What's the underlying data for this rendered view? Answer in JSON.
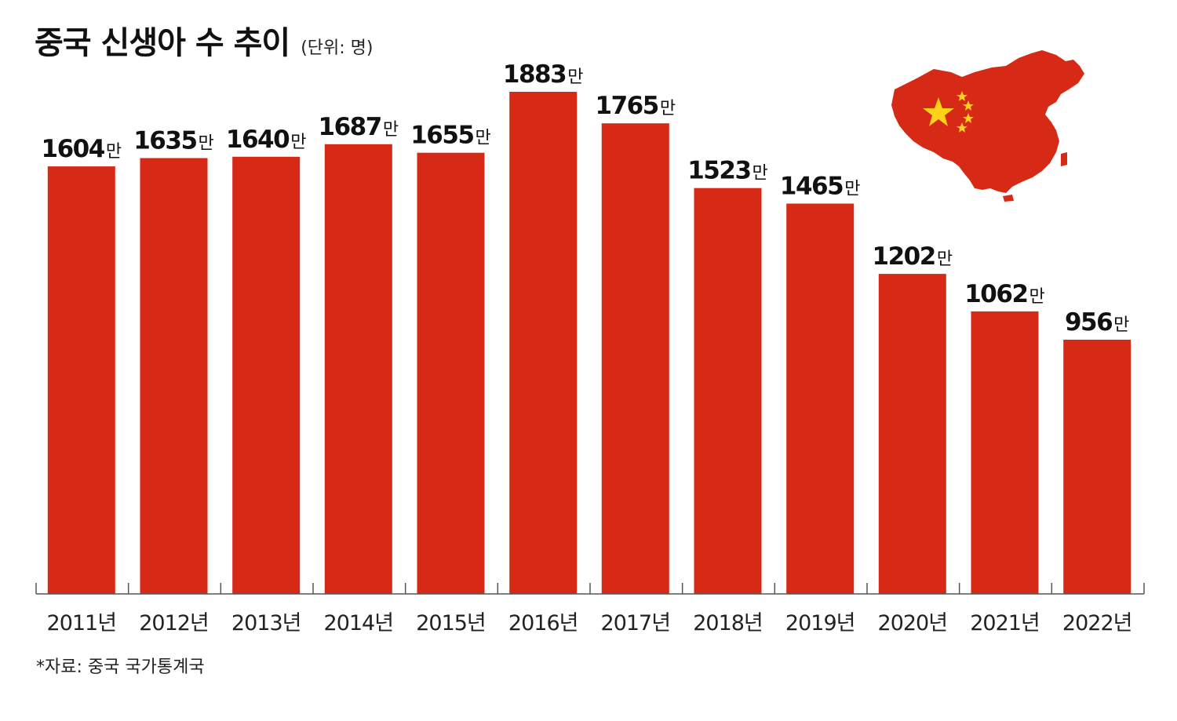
{
  "title": "중국 신생아 수 추이",
  "unit": "(단위: 명)",
  "source": "*자료: 중국 국가통계국",
  "colors": {
    "bar": "#d62a16",
    "flag_star": "#ffd21a",
    "text": "#111111"
  },
  "chart_data": {
    "type": "bar",
    "categories": [
      "2011년",
      "2012년",
      "2013년",
      "2014년",
      "2015년",
      "2016년",
      "2017년",
      "2018년",
      "2019년",
      "2020년",
      "2021년",
      "2022년"
    ],
    "values": [
      1604,
      1635,
      1640,
      1687,
      1655,
      1883,
      1765,
      1523,
      1465,
      1202,
      1062,
      956
    ],
    "value_labels": [
      "1604",
      "1635",
      "1640",
      "1687",
      "1655",
      "1883",
      "1765",
      "1523",
      "1465",
      "1202",
      "1062",
      "956"
    ],
    "value_suffix": "만",
    "title": "중국 신생아 수 추이",
    "xlabel": "",
    "ylabel": "",
    "grid": false,
    "legend": "none"
  }
}
